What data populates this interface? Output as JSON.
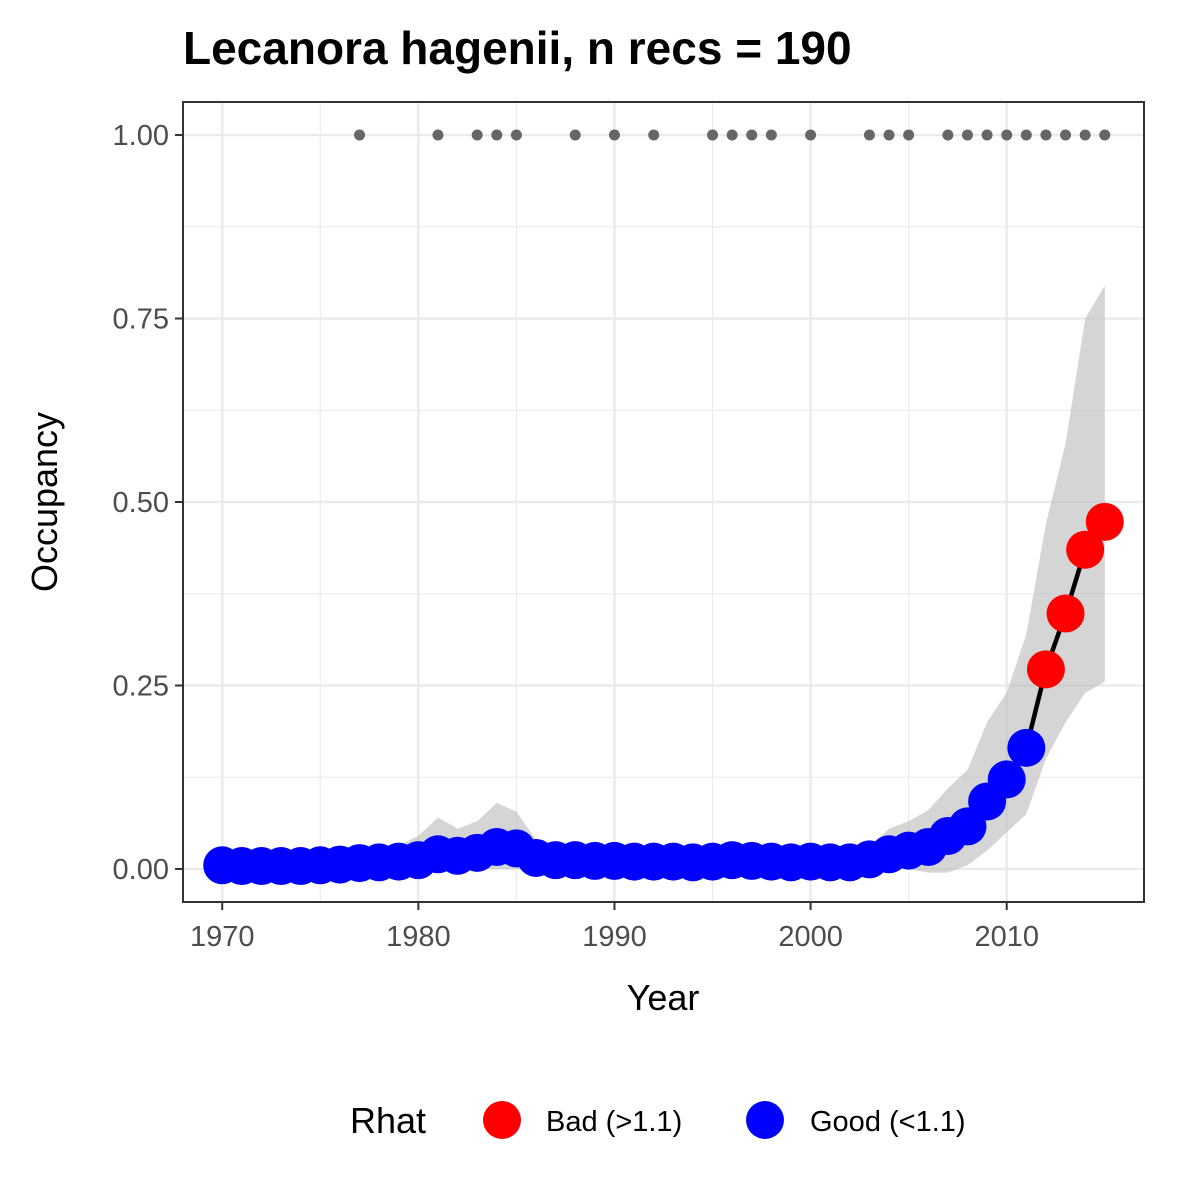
{
  "chart_data": {
    "type": "line",
    "title": "Lecanora hagenii, n recs = 190",
    "xlabel": "Year",
    "ylabel": "Occupancy",
    "xlim": [
      1968,
      2017
    ],
    "ylim": [
      -0.045,
      1.045
    ],
    "x_ticks": [
      1970,
      1980,
      1990,
      2000,
      2010
    ],
    "x_tick_labels": [
      "1970",
      "1980",
      "1990",
      "2000",
      "2010"
    ],
    "y_ticks": [
      0,
      0.25,
      0.5,
      0.75,
      1
    ],
    "y_tick_labels": [
      "0.00",
      "0.25",
      "0.50",
      "0.75",
      "1.00"
    ],
    "grid": true,
    "legend": {
      "title": "Rhat",
      "position": "bottom",
      "entries": [
        {
          "label": "Bad (>1.1)",
          "color": "#ff0000"
        },
        {
          "label": "Good (<1.1)",
          "color": "#0000ff"
        }
      ]
    },
    "series": [
      {
        "x": [
          1970,
          1971,
          1972,
          1973,
          1974,
          1975,
          1976,
          1977,
          1978,
          1979,
          1980,
          1981,
          1982,
          1983,
          1984,
          1985,
          1986,
          1987,
          1988,
          1989,
          1990,
          1991,
          1992,
          1993,
          1994,
          1995,
          1996,
          1997,
          1998,
          1999,
          2000,
          2001,
          2002,
          2003,
          2004,
          2005,
          2006,
          2007,
          2008,
          2009,
          2010,
          2011,
          2012,
          2013,
          2014,
          2015
        ],
        "y": [
          0.005,
          0.004,
          0.004,
          0.004,
          0.004,
          0.005,
          0.006,
          0.008,
          0.009,
          0.01,
          0.012,
          0.02,
          0.018,
          0.022,
          0.03,
          0.028,
          0.015,
          0.012,
          0.012,
          0.011,
          0.011,
          0.01,
          0.01,
          0.01,
          0.009,
          0.01,
          0.012,
          0.011,
          0.01,
          0.009,
          0.01,
          0.009,
          0.009,
          0.013,
          0.02,
          0.025,
          0.03,
          0.045,
          0.058,
          0.092,
          0.122,
          0.165,
          0.272,
          0.348,
          0.435,
          0.473
        ],
        "lower": [
          0.0,
          0.0,
          0.0,
          0.0,
          0.0,
          0.0,
          0.0,
          0.0,
          0.0,
          0.0,
          0.0,
          0.0,
          0.0,
          0.0,
          0.0,
          0.0,
          0.0,
          0.0,
          0.0,
          0.0,
          0.0,
          0.0,
          0.0,
          0.0,
          0.0,
          0.0,
          0.0,
          0.0,
          0.0,
          0.0,
          0.0,
          0.0,
          0.0,
          0.0,
          0.0,
          0.0,
          -0.005,
          -0.005,
          0.005,
          0.025,
          0.05,
          0.075,
          0.15,
          0.2,
          0.24,
          0.255
        ],
        "upper": [
          0.01,
          0.01,
          0.01,
          0.01,
          0.012,
          0.013,
          0.015,
          0.02,
          0.025,
          0.032,
          0.045,
          0.07,
          0.055,
          0.065,
          0.09,
          0.078,
          0.04,
          0.03,
          0.028,
          0.025,
          0.025,
          0.025,
          0.025,
          0.024,
          0.022,
          0.024,
          0.025,
          0.025,
          0.024,
          0.022,
          0.024,
          0.022,
          0.022,
          0.03,
          0.055,
          0.065,
          0.08,
          0.11,
          0.135,
          0.2,
          0.24,
          0.32,
          0.47,
          0.58,
          0.75,
          0.795
        ],
        "rhat": [
          "Good",
          "Good",
          "Good",
          "Good",
          "Good",
          "Good",
          "Good",
          "Good",
          "Good",
          "Good",
          "Good",
          "Good",
          "Good",
          "Good",
          "Good",
          "Good",
          "Good",
          "Good",
          "Good",
          "Good",
          "Good",
          "Good",
          "Good",
          "Good",
          "Good",
          "Good",
          "Good",
          "Good",
          "Good",
          "Good",
          "Good",
          "Good",
          "Good",
          "Good",
          "Good",
          "Good",
          "Good",
          "Good",
          "Good",
          "Good",
          "Good",
          "Good",
          "Bad",
          "Bad",
          "Bad",
          "Bad"
        ]
      }
    ],
    "observations": {
      "y": 1.0,
      "x": [
        1977,
        1981,
        1983,
        1984,
        1985,
        1988,
        1990,
        1992,
        1995,
        1996,
        1997,
        1998,
        2000,
        2003,
        2004,
        2005,
        2007,
        2008,
        2009,
        2010,
        2011,
        2012,
        2013,
        2014,
        2015
      ]
    },
    "colors": {
      "line": "#000000",
      "ribbon": "#bfbfbf",
      "grid": "#ebebeb",
      "observation": "#666666",
      "panel_border": "#333333",
      "Bad": "#ff0000",
      "Good": "#0000ff"
    }
  }
}
